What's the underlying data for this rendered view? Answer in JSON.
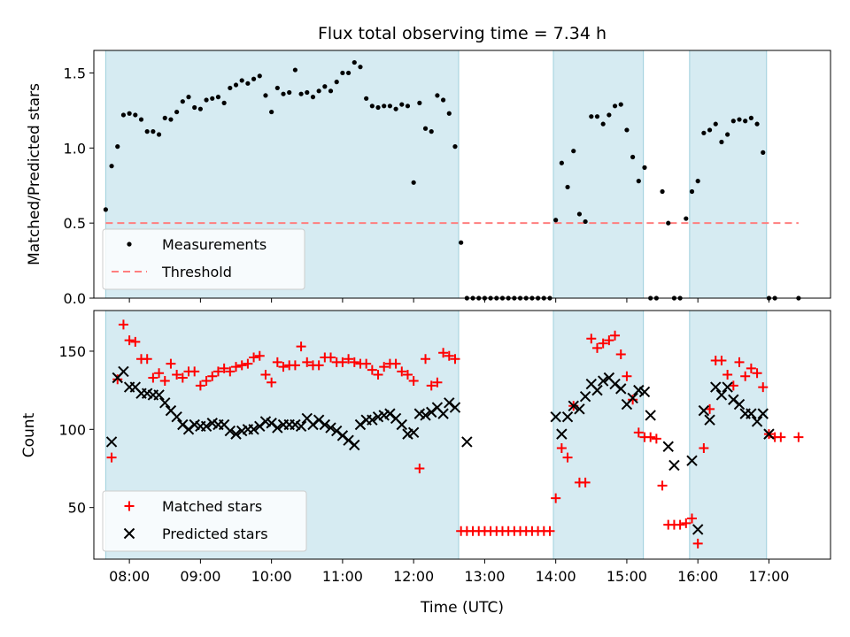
{
  "figure_title": "Flux total observing time = 7.34 h",
  "chart_data": [
    {
      "type": "scatter",
      "panel": "top",
      "ylabel": "Matched/Predicted stars",
      "xlabel": "",
      "xlim": [
        "07:30",
        "17:52"
      ],
      "ylim": [
        0,
        1.65
      ],
      "y_ticks": [
        "0.0",
        "0.5",
        "1.0",
        "1.5"
      ],
      "legend": {
        "position": "lower-left",
        "entries": [
          {
            "label": "Measurements",
            "marker": "dot",
            "color": "#000000"
          },
          {
            "label": "Threshold",
            "marker": "dashed-line",
            "color": "#ff7f7f"
          }
        ]
      },
      "threshold": {
        "y": 0.5,
        "x_start": "07:40",
        "x_end": "17:25"
      },
      "shaded_regions": [
        [
          "07:40",
          "12:38"
        ],
        [
          "13:58",
          "15:14"
        ],
        [
          "15:53",
          "16:58"
        ]
      ],
      "series": [
        {
          "name": "Measurements",
          "x": [
            "07:40",
            "07:45",
            "07:50",
            "07:55",
            "08:00",
            "08:05",
            "08:10",
            "08:15",
            "08:20",
            "08:25",
            "08:30",
            "08:35",
            "08:40",
            "08:45",
            "08:50",
            "08:55",
            "09:00",
            "09:05",
            "09:10",
            "09:15",
            "09:20",
            "09:25",
            "09:30",
            "09:35",
            "09:40",
            "09:45",
            "09:50",
            "09:55",
            "10:00",
            "10:05",
            "10:10",
            "10:15",
            "10:20",
            "10:25",
            "10:30",
            "10:35",
            "10:40",
            "10:45",
            "10:50",
            "10:55",
            "11:00",
            "11:05",
            "11:10",
            "11:15",
            "11:20",
            "11:25",
            "11:30",
            "11:35",
            "11:40",
            "11:45",
            "11:50",
            "11:55",
            "12:00",
            "12:05",
            "12:10",
            "12:15",
            "12:20",
            "12:25",
            "12:30",
            "12:35",
            "12:40",
            "12:45",
            "12:50",
            "12:55",
            "13:00",
            "13:05",
            "13:10",
            "13:15",
            "13:20",
            "13:25",
            "13:30",
            "13:35",
            "13:40",
            "13:45",
            "13:50",
            "13:55",
            "14:00",
            "14:05",
            "14:10",
            "14:15",
            "14:20",
            "14:25",
            "14:30",
            "14:35",
            "14:40",
            "14:45",
            "14:50",
            "14:55",
            "15:00",
            "15:05",
            "15:10",
            "15:15",
            "15:20",
            "15:25",
            "15:30",
            "15:35",
            "15:40",
            "15:45",
            "15:50",
            "15:55",
            "16:00",
            "16:05",
            "16:10",
            "16:15",
            "16:20",
            "16:25",
            "16:30",
            "16:35",
            "16:40",
            "16:45",
            "16:50",
            "16:55",
            "17:00",
            "17:05",
            "17:25"
          ],
          "y": [
            0.59,
            0.88,
            1.01,
            1.22,
            1.23,
            1.22,
            1.19,
            1.11,
            1.11,
            1.09,
            1.2,
            1.19,
            1.24,
            1.31,
            1.34,
            1.27,
            1.26,
            1.32,
            1.33,
            1.34,
            1.3,
            1.4,
            1.42,
            1.45,
            1.43,
            1.46,
            1.48,
            1.35,
            1.24,
            1.4,
            1.36,
            1.37,
            1.52,
            1.36,
            1.37,
            1.34,
            1.38,
            1.41,
            1.38,
            1.44,
            1.5,
            1.5,
            1.57,
            1.54,
            1.33,
            1.28,
            1.27,
            1.28,
            1.28,
            1.26,
            1.29,
            1.28,
            0.77,
            1.3,
            1.13,
            1.11,
            1.35,
            1.32,
            1.23,
            1.01,
            0.37,
            0,
            0,
            0,
            0,
            0,
            0,
            0,
            0,
            0,
            0,
            0,
            0,
            0,
            0,
            0,
            0.52,
            0.9,
            0.74,
            0.98,
            0.56,
            0.51,
            1.21,
            1.21,
            1.16,
            1.22,
            1.28,
            1.29,
            1.12,
            0.94,
            0.78,
            0.87,
            0,
            0,
            0.71,
            0.5,
            0,
            0,
            0.53,
            0.71,
            0.78,
            1.1,
            1.12,
            1.16,
            1.04,
            1.09,
            1.18,
            1.19,
            1.18,
            1.2,
            1.16,
            0.97,
            0,
            0,
            0
          ]
        }
      ]
    },
    {
      "type": "scatter",
      "panel": "bottom",
      "ylabel": "Count",
      "xlabel": "Time (UTC)",
      "xlim": [
        "07:30",
        "17:52"
      ],
      "ylim": [
        17,
        176
      ],
      "x_ticks": [
        "08:00",
        "09:00",
        "10:00",
        "11:00",
        "12:00",
        "13:00",
        "14:00",
        "15:00",
        "16:00",
        "17:00"
      ],
      "y_ticks": [
        "50",
        "100",
        "150"
      ],
      "legend": {
        "position": "lower-left",
        "entries": [
          {
            "label": "Matched stars",
            "marker": "plus",
            "color": "#ff0000"
          },
          {
            "label": "Predicted stars",
            "marker": "x",
            "color": "#000000"
          }
        ]
      },
      "shaded_regions": [
        [
          "07:40",
          "12:38"
        ],
        [
          "13:58",
          "15:14"
        ],
        [
          "15:53",
          "16:58"
        ]
      ],
      "series": [
        {
          "name": "Matched stars",
          "x": [
            "07:45",
            "07:50",
            "07:55",
            "08:00",
            "08:05",
            "08:10",
            "08:15",
            "08:20",
            "08:25",
            "08:30",
            "08:35",
            "08:40",
            "08:45",
            "08:50",
            "08:55",
            "09:00",
            "09:05",
            "09:10",
            "09:15",
            "09:20",
            "09:25",
            "09:30",
            "09:35",
            "09:40",
            "09:45",
            "09:50",
            "09:55",
            "10:00",
            "10:05",
            "10:10",
            "10:15",
            "10:20",
            "10:25",
            "10:30",
            "10:35",
            "10:40",
            "10:45",
            "10:50",
            "10:55",
            "11:00",
            "11:05",
            "11:10",
            "11:15",
            "11:20",
            "11:25",
            "11:30",
            "11:35",
            "11:40",
            "11:45",
            "11:50",
            "11:55",
            "12:00",
            "12:05",
            "12:10",
            "12:15",
            "12:20",
            "12:25",
            "12:30",
            "12:35",
            "12:40",
            "12:45",
            "12:50",
            "12:55",
            "13:00",
            "13:05",
            "13:10",
            "13:15",
            "13:20",
            "13:25",
            "13:30",
            "13:35",
            "13:40",
            "13:45",
            "13:50",
            "13:55",
            "14:00",
            "14:05",
            "14:10",
            "14:15",
            "14:20",
            "14:25",
            "14:30",
            "14:35",
            "14:40",
            "14:45",
            "14:50",
            "14:55",
            "15:00",
            "15:05",
            "15:10",
            "15:15",
            "15:20",
            "15:25",
            "15:30",
            "15:35",
            "15:40",
            "15:45",
            "15:50",
            "15:55",
            "16:00",
            "16:05",
            "16:10",
            "16:15",
            "16:20",
            "16:25",
            "16:30",
            "16:35",
            "16:40",
            "16:45",
            "16:50",
            "16:55",
            "17:00",
            "17:05",
            "17:10",
            "17:25"
          ],
          "y": [
            82,
            132,
            167,
            157,
            156,
            145,
            145,
            133,
            136,
            131,
            142,
            135,
            133,
            137,
            137,
            128,
            131,
            134,
            137,
            139,
            137,
            140,
            141,
            142,
            146,
            147,
            135,
            130,
            143,
            140,
            141,
            141,
            153,
            143,
            141,
            141,
            146,
            146,
            143,
            143,
            145,
            143,
            142,
            142,
            138,
            135,
            140,
            142,
            142,
            137,
            135,
            131,
            75,
            145,
            128,
            130,
            149,
            147,
            145,
            35,
            35,
            35,
            35,
            35,
            35,
            35,
            35,
            35,
            35,
            35,
            35,
            35,
            35,
            35,
            35,
            56,
            88,
            82,
            115,
            66,
            66,
            158,
            152,
            155,
            157,
            160,
            148,
            134,
            119,
            98,
            95,
            95,
            94,
            64,
            39,
            39,
            39,
            40,
            43,
            27,
            88,
            113,
            144,
            144,
            135,
            128,
            143,
            134,
            139,
            136,
            127,
            97,
            95,
            95,
            95
          ]
        },
        {
          "name": "Predicted stars",
          "x": [
            "07:45",
            "07:50",
            "07:55",
            "08:00",
            "08:05",
            "08:10",
            "08:15",
            "08:20",
            "08:25",
            "08:30",
            "08:35",
            "08:40",
            "08:45",
            "08:50",
            "08:55",
            "09:00",
            "09:05",
            "09:10",
            "09:15",
            "09:20",
            "09:25",
            "09:30",
            "09:35",
            "09:40",
            "09:45",
            "09:50",
            "09:55",
            "10:00",
            "10:05",
            "10:10",
            "10:15",
            "10:20",
            "10:25",
            "10:30",
            "10:35",
            "10:40",
            "10:45",
            "10:50",
            "10:55",
            "11:00",
            "11:05",
            "11:10",
            "11:15",
            "11:20",
            "11:25",
            "11:30",
            "11:35",
            "11:40",
            "11:45",
            "11:50",
            "11:55",
            "12:00",
            "12:05",
            "12:10",
            "12:15",
            "12:20",
            "12:25",
            "12:30",
            "12:35",
            "12:45",
            "14:00",
            "14:05",
            "14:10",
            "14:15",
            "14:20",
            "14:25",
            "14:30",
            "14:35",
            "14:40",
            "14:45",
            "14:50",
            "14:55",
            "15:00",
            "15:05",
            "15:10",
            "15:15",
            "15:20",
            "15:35",
            "15:40",
            "15:55",
            "16:00",
            "16:05",
            "16:10",
            "16:15",
            "16:20",
            "16:25",
            "16:30",
            "16:35",
            "16:40",
            "16:45",
            "16:50",
            "16:55",
            "17:00"
          ],
          "y": [
            92,
            133,
            137,
            127,
            127,
            123,
            123,
            122,
            122,
            117,
            112,
            108,
            103,
            100,
            103,
            102,
            102,
            104,
            103,
            103,
            99,
            97,
            99,
            100,
            100,
            102,
            105,
            104,
            101,
            103,
            103,
            103,
            102,
            107,
            103,
            106,
            103,
            101,
            99,
            96,
            93,
            90,
            103,
            106,
            106,
            108,
            109,
            110,
            107,
            103,
            97,
            98,
            110,
            109,
            111,
            114,
            110,
            117,
            114,
            92,
            108,
            97,
            108,
            115,
            113,
            121,
            129,
            125,
            131,
            133,
            129,
            126,
            116,
            120,
            125,
            124,
            109,
            89,
            77,
            80,
            36,
            112,
            106,
            127,
            122,
            127,
            119,
            116,
            110,
            110,
            105,
            110,
            97
          ]
        }
      ]
    }
  ]
}
